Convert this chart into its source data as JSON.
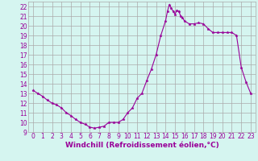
{
  "x": [
    0,
    0.5,
    1,
    1.5,
    2,
    2.5,
    3,
    3.5,
    4,
    4.5,
    5,
    5.5,
    6,
    6.5,
    7,
    7.5,
    8,
    8.5,
    9,
    9.5,
    10,
    10.5,
    11,
    11.5,
    12,
    12.5,
    13,
    13.5,
    14,
    14.2,
    14.4,
    14.6,
    14.8,
    15,
    15.2,
    15.4,
    15.6,
    15.8,
    16,
    16.5,
    17,
    17.5,
    18,
    18.5,
    19,
    19.5,
    20,
    20.5,
    21,
    21.5,
    22,
    22.5,
    23
  ],
  "y": [
    13.3,
    13.0,
    12.7,
    12.3,
    12.0,
    11.8,
    11.5,
    11.0,
    10.7,
    10.3,
    10.0,
    9.8,
    9.5,
    9.4,
    9.5,
    9.6,
    10.0,
    10.0,
    10.0,
    10.3,
    11.0,
    11.5,
    12.5,
    13.0,
    14.3,
    15.5,
    17.0,
    19.0,
    20.5,
    21.5,
    22.2,
    21.8,
    21.5,
    21.2,
    21.6,
    21.5,
    21.0,
    20.8,
    20.5,
    20.2,
    20.2,
    20.3,
    20.2,
    19.7,
    19.3,
    19.3,
    19.3,
    19.3,
    19.3,
    19.0,
    15.7,
    14.2,
    13.0
  ],
  "line_color": "#990099",
  "marker": "*",
  "marker_size": 2.5,
  "bg_color": "#d5f5f0",
  "grid_color": "#aaaaaa",
  "xlabel": "Windchill (Refroidissement éolien,°C)",
  "xlabel_fontsize": 6.5,
  "ylabel_ticks": [
    9,
    10,
    11,
    12,
    13,
    14,
    15,
    16,
    17,
    18,
    19,
    20,
    21,
    22
  ],
  "xlim": [
    -0.5,
    23.5
  ],
  "ylim": [
    9,
    22.5
  ],
  "xticks": [
    0,
    1,
    2,
    3,
    4,
    5,
    6,
    7,
    8,
    9,
    10,
    11,
    12,
    13,
    14,
    15,
    16,
    17,
    18,
    19,
    20,
    21,
    22,
    23
  ],
  "tick_fontsize": 5.5,
  "tick_color": "#990099",
  "fig_width": 3.2,
  "fig_height": 2.0,
  "dpi": 100
}
